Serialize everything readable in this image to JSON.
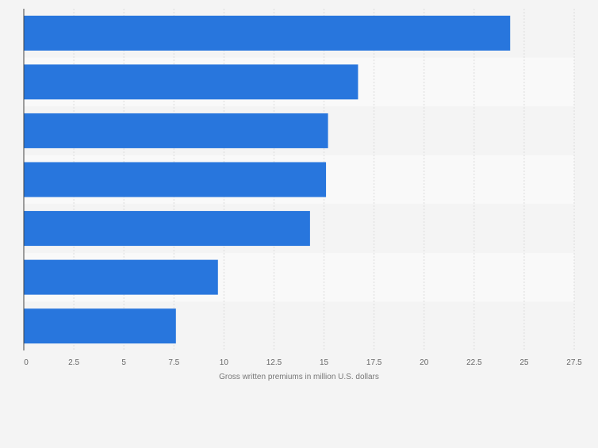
{
  "chart_data": {
    "type": "bar",
    "orientation": "horizontal",
    "categories": [
      "",
      "",
      "",
      "",
      "",
      "",
      ""
    ],
    "values": [
      24.3,
      16.7,
      15.2,
      15.1,
      14.3,
      9.7,
      7.6
    ],
    "xlabel": "Gross written premiums in million U.S. dollars",
    "ylabel": "",
    "xlim": [
      0,
      27.5
    ],
    "ticks": [
      "0",
      "2.5",
      "5",
      "7.5",
      "10",
      "12.5",
      "15",
      "17.5",
      "20",
      "22.5",
      "25",
      "27.5"
    ],
    "grid": true,
    "legend": "none",
    "colors": {
      "bar": "#2876dd",
      "band_light": "#f4f4f4",
      "band_white": "#f9f9f9",
      "grid": "#dcdcdc",
      "axis": "#444444",
      "tick_text": "#666666",
      "label_text": "#777777"
    }
  }
}
